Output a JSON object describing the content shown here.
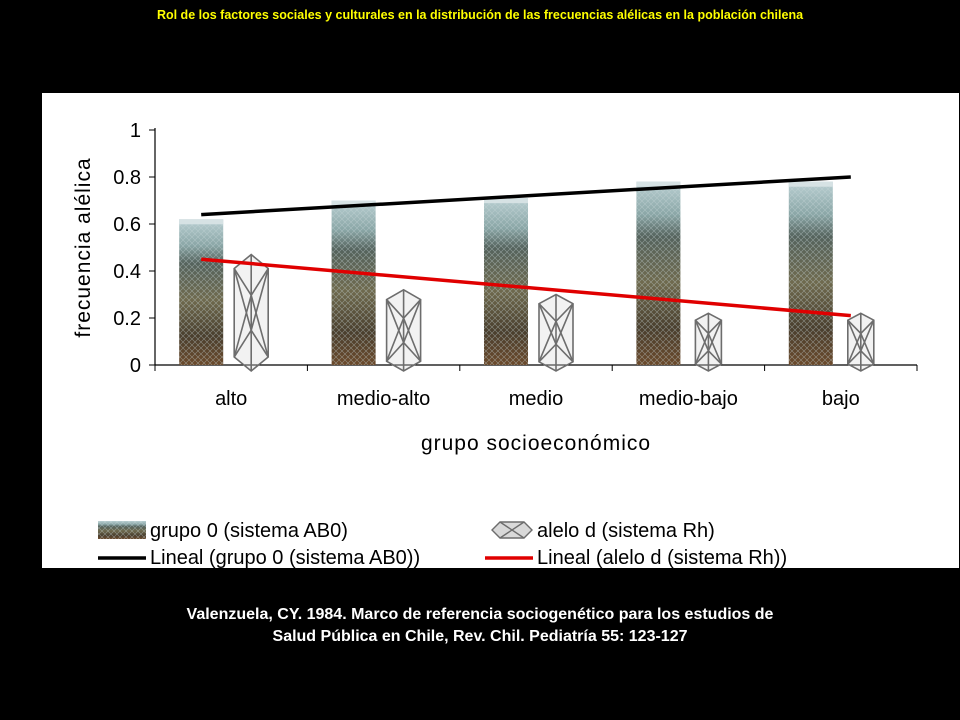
{
  "slide": {
    "title": "Rol de los factores sociales y culturales en la distribución de las frecuencias alélicas en la población chilena",
    "citation_line1": "Valenzuela, CY. 1984. Marco de referencia sociogenético para los estudios de",
    "citation_line2": "Salud Pública en Chile, Rev. Chil. Pediatría 55: 123-127"
  },
  "colors": {
    "background": "#000000",
    "title": "#ffff00",
    "trend_ab0": "#000000",
    "trend_rh": "#e00000"
  },
  "chart_data": {
    "type": "bar",
    "xlabel": "grupo socioeconómico",
    "ylabel": "frecuencia alélica",
    "ylim": [
      0,
      1
    ],
    "yticks": [
      "0",
      "0.2",
      "0.4",
      "0.6",
      "0.8",
      "1"
    ],
    "grid": false,
    "legend_position": "bottom",
    "categories": [
      "alto",
      "medio-alto",
      "medio",
      "medio-bajo",
      "bajo"
    ],
    "series": [
      {
        "name": "grupo 0 (sistema AB0)",
        "values": [
          0.62,
          0.7,
          0.71,
          0.78,
          0.78
        ]
      },
      {
        "name": "alelo d (sistema Rh)",
        "values": [
          0.47,
          0.32,
          0.3,
          0.22,
          0.22
        ]
      }
    ],
    "trendlines": [
      {
        "name": "Lineal (grupo 0 (sistema AB0))",
        "start": 0.64,
        "end": 0.8
      },
      {
        "name": "Lineal (alelo d (sistema Rh))",
        "start": 0.45,
        "end": 0.21
      }
    ]
  }
}
